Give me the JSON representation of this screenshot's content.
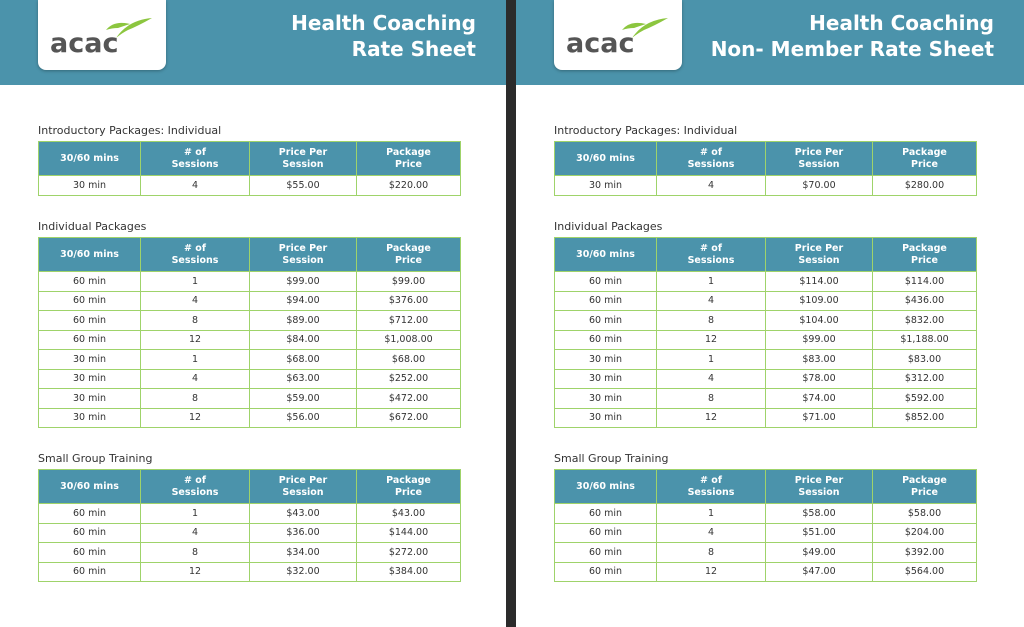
{
  "pages": [
    {
      "logo": "acac",
      "title": [
        "Health Coaching",
        "Rate Sheet"
      ],
      "sections": [
        {
          "title": "Introductory Packages: Individual",
          "headers": [
            "30/60 mins",
            "# of Sessions",
            "Price Per Session",
            "Package Price"
          ],
          "rows": [
            [
              "30 min",
              "4",
              "$55.00",
              "$220.00"
            ]
          ]
        },
        {
          "title": "Individual Packages",
          "headers": [
            "30/60 mins",
            "# of Sessions",
            "Price Per Session",
            "Package Price"
          ],
          "rows": [
            [
              "60 min",
              "1",
              "$99.00",
              "$99.00"
            ],
            [
              "60 min",
              "4",
              "$94.00",
              "$376.00"
            ],
            [
              "60 min",
              "8",
              "$89.00",
              "$712.00"
            ],
            [
              "60 min",
              "12",
              "$84.00",
              "$1,008.00"
            ],
            [
              "30 min",
              "1",
              "$68.00",
              "$68.00"
            ],
            [
              "30 min",
              "4",
              "$63.00",
              "$252.00"
            ],
            [
              "30 min",
              "8",
              "$59.00",
              "$472.00"
            ],
            [
              "30 min",
              "12",
              "$56.00",
              "$672.00"
            ]
          ]
        },
        {
          "title": "Small Group Training",
          "headers": [
            "30/60 mins",
            "# of Sessions",
            "Price Per Session",
            "Package Price"
          ],
          "rows": [
            [
              "60 min",
              "1",
              "$43.00",
              "$43.00"
            ],
            [
              "60 min",
              "4",
              "$36.00",
              "$144.00"
            ],
            [
              "60 min",
              "8",
              "$34.00",
              "$272.00"
            ],
            [
              "60 min",
              "12",
              "$32.00",
              "$384.00"
            ]
          ]
        }
      ]
    },
    {
      "logo": "acac",
      "title": [
        "Health Coaching",
        "Non- Member Rate Sheet"
      ],
      "sections": [
        {
          "title": "Introductory Packages: Individual",
          "headers": [
            "30/60 mins",
            "# of Sessions",
            "Price Per Session",
            "Package Price"
          ],
          "rows": [
            [
              "30 min",
              "4",
              "$70.00",
              "$280.00"
            ]
          ]
        },
        {
          "title": "Individual Packages",
          "headers": [
            "30/60 mins",
            "# of Sessions",
            "Price Per Session",
            "Package Price"
          ],
          "rows": [
            [
              "60 min",
              "1",
              "$114.00",
              "$114.00"
            ],
            [
              "60 min",
              "4",
              "$109.00",
              "$436.00"
            ],
            [
              "60 min",
              "8",
              "$104.00",
              "$832.00"
            ],
            [
              "60 min",
              "12",
              "$99.00",
              "$1,188.00"
            ],
            [
              "30 min",
              "1",
              "$83.00",
              "$83.00"
            ],
            [
              "30 min",
              "4",
              "$78.00",
              "$312.00"
            ],
            [
              "30 min",
              "8",
              "$74.00",
              "$592.00"
            ],
            [
              "30 min",
              "12",
              "$71.00",
              "$852.00"
            ]
          ]
        },
        {
          "title": "Small Group Training",
          "headers": [
            "30/60 mins",
            "# of Sessions",
            "Price Per Session",
            "Package Price"
          ],
          "rows": [
            [
              "60 min",
              "1",
              "$58.00",
              "$58.00"
            ],
            [
              "60 min",
              "4",
              "$51.00",
              "$204.00"
            ],
            [
              "60 min",
              "8",
              "$49.00",
              "$392.00"
            ],
            [
              "60 min",
              "12",
              "$47.00",
              "$564.00"
            ]
          ]
        }
      ]
    }
  ]
}
